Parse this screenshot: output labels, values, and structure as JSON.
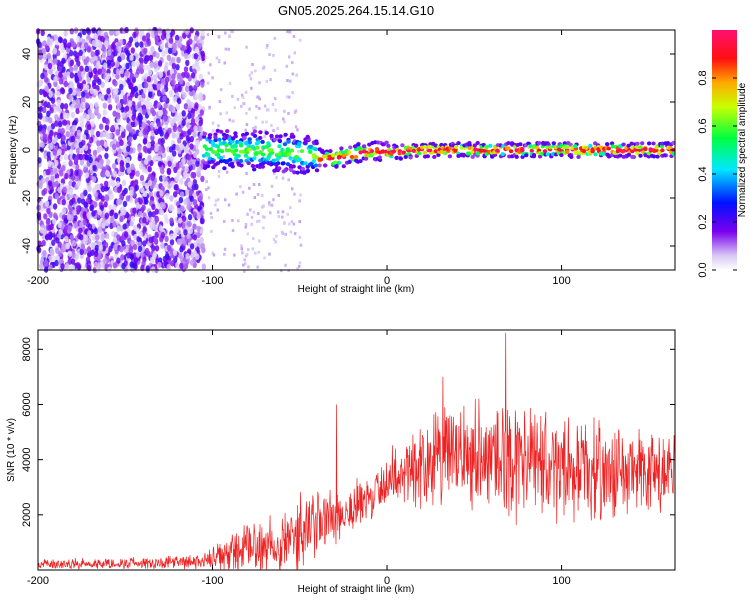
{
  "title": "GN05.2025.264.15.14.G10",
  "chart_data": [
    {
      "type": "heatmap",
      "name": "spectrogram",
      "xlabel": "Height of straight line (km)",
      "ylabel": "Frequency (Hz)",
      "xlim": [
        -200,
        165
      ],
      "ylim": [
        -50,
        50
      ],
      "xticks": [
        -200,
        -100,
        0,
        100
      ],
      "yticks": [
        -40,
        -20,
        0,
        20,
        40
      ],
      "signal_track": [
        {
          "x": -105,
          "y": 0
        },
        {
          "x": -80,
          "y": 0
        },
        {
          "x": -60,
          "y": -1
        },
        {
          "x": -45,
          "y": -2
        },
        {
          "x": -35,
          "y": -4
        },
        {
          "x": -25,
          "y": -3
        },
        {
          "x": -15,
          "y": -1
        },
        {
          "x": -5,
          "y": 0
        },
        {
          "x": 0,
          "y": -1
        },
        {
          "x": 20,
          "y": 0
        },
        {
          "x": 60,
          "y": 0
        },
        {
          "x": 100,
          "y": 0
        },
        {
          "x": 130,
          "y": 0
        },
        {
          "x": 165,
          "y": 0
        }
      ],
      "colorbar": {
        "label": "Normalized spectral amplitude",
        "range": [
          0.0,
          1.0
        ],
        "ticks": [
          0.0,
          0.2,
          0.4,
          0.6,
          0.8
        ],
        "tick_labels": [
          "0.0",
          "0.2",
          "0.4",
          "0.6",
          "0.8"
        ]
      }
    },
    {
      "type": "line",
      "name": "snr",
      "xlabel": "Height of straight line (km)",
      "ylabel": "SNR (10 * v/v)",
      "xlim": [
        -200,
        165
      ],
      "ylim": [
        0,
        8700
      ],
      "xticks": [
        -200,
        -100,
        0,
        100
      ],
      "yticks": [
        2000,
        4000,
        6000,
        8000
      ],
      "color": "#ee2222",
      "envelope": [
        {
          "x": -200,
          "mean": 200,
          "spread": 200
        },
        {
          "x": -150,
          "mean": 250,
          "spread": 250
        },
        {
          "x": -110,
          "mean": 280,
          "spread": 300
        },
        {
          "x": -100,
          "mean": 350,
          "spread": 500
        },
        {
          "x": -90,
          "mean": 600,
          "spread": 900
        },
        {
          "x": -70,
          "mean": 900,
          "spread": 1300
        },
        {
          "x": -50,
          "mean": 1300,
          "spread": 1600
        },
        {
          "x": -30,
          "mean": 2000,
          "spread": 1500
        },
        {
          "x": -10,
          "mean": 2500,
          "spread": 1000
        },
        {
          "x": 0,
          "mean": 3300,
          "spread": 1200
        },
        {
          "x": 20,
          "mean": 3900,
          "spread": 2000
        },
        {
          "x": 50,
          "mean": 4300,
          "spread": 2400
        },
        {
          "x": 70,
          "mean": 4000,
          "spread": 2600
        },
        {
          "x": 100,
          "mean": 3700,
          "spread": 2200
        },
        {
          "x": 130,
          "mean": 3500,
          "spread": 2000
        },
        {
          "x": 165,
          "mean": 3400,
          "spread": 2000
        }
      ],
      "spikes": [
        {
          "x": -29,
          "y": 6000
        },
        {
          "x": 68,
          "y": 8600
        },
        {
          "x": 32,
          "y": 7000
        }
      ]
    }
  ]
}
